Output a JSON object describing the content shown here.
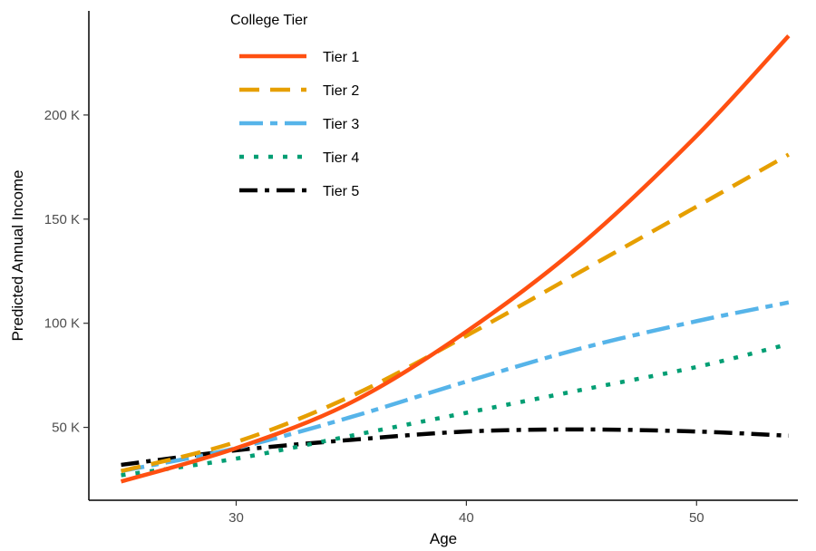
{
  "chart_data": {
    "type": "line",
    "title": "",
    "xlabel": "Age",
    "ylabel": "Predicted Annual Income",
    "xlim": [
      23.6,
      54.4
    ],
    "ylim": [
      15000,
      250000
    ],
    "x_ticks": [
      30,
      40,
      50
    ],
    "x_tick_labels": [
      "30",
      "40",
      "50"
    ],
    "y_ticks": [
      50000,
      100000,
      150000,
      200000
    ],
    "y_tick_labels": [
      "50 K",
      "100 K",
      "150 K",
      "200 K"
    ],
    "grid": false,
    "legend": {
      "title": "College Tier",
      "position": "top-left"
    },
    "x": [
      25,
      30,
      35,
      40,
      45,
      50,
      54
    ],
    "series": [
      {
        "name": "Tier 1",
        "color": "#FF5011",
        "dash": "solid",
        "values": [
          24000,
          40000,
          62000,
          96000,
          138000,
          190000,
          238000
        ]
      },
      {
        "name": "Tier 2",
        "color": "#E69F00",
        "dash": "dashed",
        "values": [
          29000,
          43000,
          65000,
          94000,
          125000,
          156000,
          181000
        ]
      },
      {
        "name": "Tier 3",
        "color": "#56B4E9",
        "dash": "longdash",
        "values": [
          29000,
          40000,
          55000,
          72000,
          88000,
          101000,
          110000
        ]
      },
      {
        "name": "Tier 4",
        "color": "#009E73",
        "dash": "dotted",
        "values": [
          27000,
          35000,
          46000,
          57000,
          68000,
          79000,
          90000
        ]
      },
      {
        "name": "Tier 5",
        "color": "#000000",
        "dash": "dotdash",
        "values": [
          32000,
          39000,
          44000,
          48000,
          49000,
          48000,
          46000
        ]
      }
    ]
  }
}
